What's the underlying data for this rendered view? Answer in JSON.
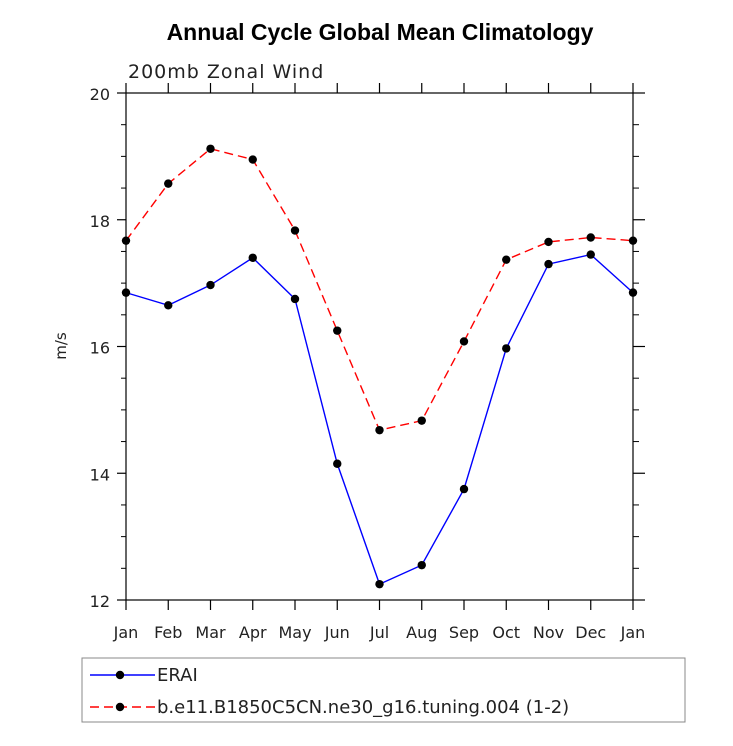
{
  "chart_data": {
    "type": "line",
    "title": "Annual Cycle Global Mean Climatology",
    "subtitle": "200mb Zonal Wind",
    "xlabel": "",
    "ylabel": "m/s",
    "categories": [
      "Jan",
      "Feb",
      "Mar",
      "Apr",
      "May",
      "Jun",
      "Jul",
      "Aug",
      "Sep",
      "Oct",
      "Nov",
      "Dec",
      "Jan"
    ],
    "ylim": [
      12,
      20
    ],
    "yticks": [
      12,
      14,
      16,
      18,
      20
    ],
    "series": [
      {
        "name": "ERAI",
        "color": "#0000ff",
        "dash": "solid",
        "values": [
          16.85,
          16.65,
          16.97,
          17.4,
          16.75,
          14.15,
          12.25,
          12.55,
          13.75,
          15.97,
          17.3,
          17.45,
          16.85
        ]
      },
      {
        "name": "b.e11.B1850C5CN.ne30_g16.tuning.004 (1-2)",
        "color": "#ff0000",
        "dash": "dashed",
        "values": [
          17.67,
          18.57,
          19.12,
          18.95,
          17.83,
          16.25,
          14.68,
          14.83,
          16.08,
          17.37,
          17.65,
          17.72,
          17.67
        ]
      }
    ],
    "legend_position": "bottom"
  }
}
